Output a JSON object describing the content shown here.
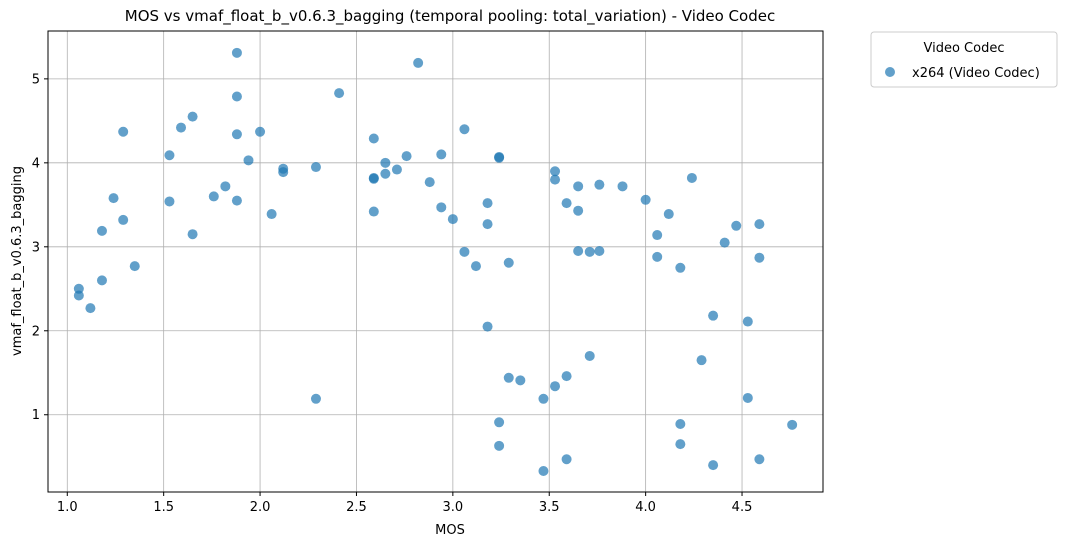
{
  "chart_data": {
    "type": "scatter",
    "title": "MOS vs vmaf_float_b_v0.6.3_bagging (temporal pooling: total_variation) - Video Codec",
    "xlabel": "MOS",
    "ylabel": "vmaf_float_b_v0.6.3_bagging",
    "xlim": [
      0.9,
      4.92
    ],
    "ylim": [
      0.08,
      5.57
    ],
    "xticks": [
      1.0,
      1.5,
      2.0,
      2.5,
      3.0,
      3.5,
      4.0,
      4.5
    ],
    "xtick_labels": [
      "1.0",
      "1.5",
      "2.0",
      "2.5",
      "3.0",
      "3.5",
      "4.0",
      "4.5"
    ],
    "yticks": [
      1,
      2,
      3,
      4,
      5
    ],
    "ytick_labels": [
      "1",
      "2",
      "3",
      "4",
      "5"
    ],
    "grid": true,
    "legend": {
      "title": "Video Codec",
      "placement": "outside-top-right"
    },
    "series": [
      {
        "name": "x264 (Video Codec)",
        "color": "#1f77b4",
        "points": [
          [
            1.06,
            2.5
          ],
          [
            1.06,
            2.42
          ],
          [
            1.12,
            2.27
          ],
          [
            1.18,
            2.6
          ],
          [
            1.18,
            3.19
          ],
          [
            1.24,
            3.58
          ],
          [
            1.29,
            3.32
          ],
          [
            1.29,
            4.37
          ],
          [
            1.35,
            2.77
          ],
          [
            1.53,
            3.54
          ],
          [
            1.53,
            4.09
          ],
          [
            1.59,
            4.42
          ],
          [
            1.65,
            4.55
          ],
          [
            1.65,
            3.15
          ],
          [
            1.76,
            3.6
          ],
          [
            1.82,
            3.72
          ],
          [
            1.88,
            5.31
          ],
          [
            1.88,
            4.79
          ],
          [
            1.88,
            4.34
          ],
          [
            1.88,
            3.55
          ],
          [
            1.94,
            4.03
          ],
          [
            2.0,
            4.37
          ],
          [
            2.06,
            3.39
          ],
          [
            2.12,
            3.93
          ],
          [
            2.12,
            3.89
          ],
          [
            2.29,
            3.95
          ],
          [
            2.29,
            1.19
          ],
          [
            2.41,
            4.83
          ],
          [
            2.59,
            4.29
          ],
          [
            2.59,
            3.82
          ],
          [
            2.59,
            3.81
          ],
          [
            2.59,
            3.42
          ],
          [
            2.65,
            4.0
          ],
          [
            2.65,
            3.87
          ],
          [
            2.71,
            3.92
          ],
          [
            2.76,
            4.08
          ],
          [
            2.82,
            5.19
          ],
          [
            2.88,
            3.77
          ],
          [
            2.94,
            4.1
          ],
          [
            2.94,
            3.47
          ],
          [
            3.0,
            3.33
          ],
          [
            3.06,
            4.4
          ],
          [
            3.06,
            2.94
          ],
          [
            3.12,
            2.77
          ],
          [
            3.18,
            3.52
          ],
          [
            3.18,
            3.27
          ],
          [
            3.18,
            2.05
          ],
          [
            3.24,
            4.07
          ],
          [
            3.24,
            4.06
          ],
          [
            3.24,
            0.91
          ],
          [
            3.24,
            0.63
          ],
          [
            3.29,
            2.81
          ],
          [
            3.29,
            1.44
          ],
          [
            3.35,
            1.41
          ],
          [
            3.47,
            1.19
          ],
          [
            3.47,
            0.33
          ],
          [
            3.53,
            3.9
          ],
          [
            3.53,
            3.8
          ],
          [
            3.53,
            1.34
          ],
          [
            3.59,
            3.52
          ],
          [
            3.59,
            1.46
          ],
          [
            3.59,
            0.47
          ],
          [
            3.65,
            3.72
          ],
          [
            3.65,
            3.43
          ],
          [
            3.65,
            2.95
          ],
          [
            3.71,
            2.94
          ],
          [
            3.71,
            1.7
          ],
          [
            3.76,
            3.74
          ],
          [
            3.76,
            2.95
          ],
          [
            3.88,
            3.72
          ],
          [
            4.0,
            3.56
          ],
          [
            4.06,
            3.14
          ],
          [
            4.06,
            2.88
          ],
          [
            4.12,
            3.39
          ],
          [
            4.18,
            2.75
          ],
          [
            4.18,
            0.89
          ],
          [
            4.18,
            0.65
          ],
          [
            4.24,
            3.82
          ],
          [
            4.29,
            1.65
          ],
          [
            4.35,
            2.18
          ],
          [
            4.35,
            0.4
          ],
          [
            4.41,
            3.05
          ],
          [
            4.47,
            3.25
          ],
          [
            4.53,
            2.11
          ],
          [
            4.53,
            1.2
          ],
          [
            4.59,
            3.27
          ],
          [
            4.59,
            2.87
          ],
          [
            4.59,
            0.47
          ],
          [
            4.76,
            0.88
          ]
        ]
      }
    ]
  }
}
